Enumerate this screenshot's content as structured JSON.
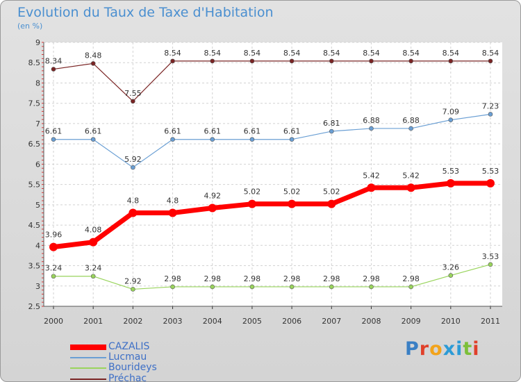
{
  "title": "Evolution du Taux de Taxe d'Habitation",
  "subtitle": "(en %)",
  "logo": {
    "text": "Proxiti"
  },
  "chart_data": {
    "type": "line",
    "categories": [
      "2000",
      "2001",
      "2002",
      "2003",
      "2004",
      "2005",
      "2006",
      "2007",
      "2008",
      "2009",
      "2010",
      "2011"
    ],
    "ylim": [
      2.5,
      9
    ],
    "yticks": [
      "2.5",
      "3",
      "3.5",
      "4",
      "4.5",
      "5",
      "5.5",
      "6",
      "6.5",
      "7",
      "7.5",
      "8",
      "8.5",
      "9"
    ],
    "grid": true,
    "legend_position": "bottom-left",
    "series": [
      {
        "name": "CAZALIS",
        "color": "#ff0000",
        "width": 7,
        "marker": 6,
        "values": [
          3.96,
          4.08,
          4.8,
          4.8,
          4.92,
          5.02,
          5.02,
          5.02,
          5.42,
          5.42,
          5.53,
          5.53
        ],
        "labels": [
          "3.96",
          "4.08",
          "4.8",
          "4.8",
          "4.92",
          "5.02",
          "5.02",
          "5.02",
          "5.42",
          "5.42",
          "5.53",
          "5.53"
        ]
      },
      {
        "name": "Lucmau",
        "color": "#6a9fd4",
        "width": 1.2,
        "marker": 3,
        "values": [
          6.61,
          6.61,
          5.92,
          6.61,
          6.61,
          6.61,
          6.61,
          6.81,
          6.88,
          6.88,
          7.09,
          7.23
        ],
        "labels": [
          "6.61",
          "6.61",
          "5.92",
          "6.61",
          "6.61",
          "6.61",
          "6.61",
          "6.81",
          "6.88",
          "6.88",
          "7.09",
          "7.23"
        ]
      },
      {
        "name": "Bourideys",
        "color": "#99d45c",
        "width": 1.2,
        "marker": 3,
        "values": [
          3.24,
          3.24,
          2.92,
          2.98,
          2.98,
          2.98,
          2.98,
          2.98,
          2.98,
          2.98,
          3.26,
          3.53
        ],
        "labels": [
          "3.24",
          "3.24",
          "2.92",
          "2.98",
          "2.98",
          "2.98",
          "2.98",
          "2.98",
          "2.98",
          "2.98",
          "3.26",
          "3.53"
        ]
      },
      {
        "name": "Préchac",
        "color": "#7a2424",
        "width": 1.2,
        "marker": 3,
        "values": [
          8.34,
          8.48,
          7.55,
          8.54,
          8.54,
          8.54,
          8.54,
          8.54,
          8.54,
          8.54,
          8.54,
          8.54
        ],
        "labels": [
          "8.34",
          "8.48",
          "7.55",
          "8.54",
          "8.54",
          "8.54",
          "8.54",
          "8.54",
          "8.54",
          "8.54",
          "8.54",
          "8.54"
        ]
      }
    ]
  }
}
